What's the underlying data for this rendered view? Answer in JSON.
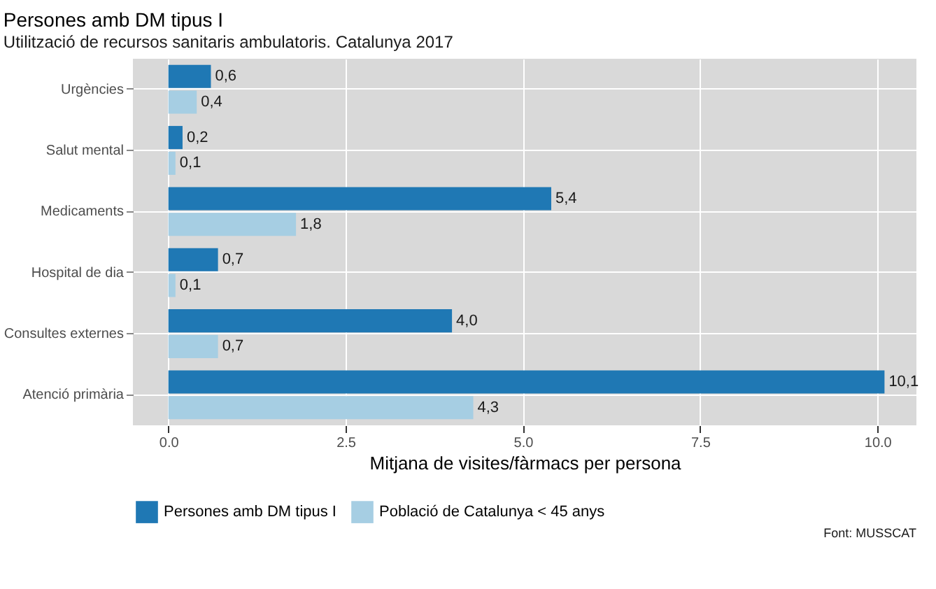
{
  "chart_data": {
    "type": "bar",
    "orientation": "horizontal",
    "title": "Persones amb DM tipus I",
    "subtitle": "Utilització de recursos sanitaris ambulatoris. Catalunya 2017",
    "xlabel": "Mitjana de visites/fàrmacs per persona",
    "categories": [
      "Urgències",
      "Salut mental",
      "Medicaments",
      "Hospital de dia",
      "Consultes externes",
      "Atenció primària"
    ],
    "series": [
      {
        "name": "Persones amb DM tipus I",
        "color": "#1f78b4",
        "values": [
          0.6,
          0.2,
          5.4,
          0.7,
          4.0,
          10.1
        ],
        "value_labels": [
          "0,6",
          "0,2",
          "5,4",
          "0,7",
          "4,0",
          "10,1"
        ]
      },
      {
        "name": "Població de Catalunya < 45 anys",
        "color": "#a6cee3",
        "values": [
          0.4,
          0.1,
          1.8,
          0.1,
          0.7,
          4.3
        ],
        "value_labels": [
          "0,4",
          "0,1",
          "1,8",
          "0,1",
          "0,7",
          "4,3"
        ]
      }
    ],
    "xlim": [
      -0.5,
      10.55
    ],
    "xticks": [
      {
        "value": 0,
        "label": "0.0"
      },
      {
        "value": 2.5,
        "label": "2.5"
      },
      {
        "value": 5,
        "label": "5.0"
      },
      {
        "value": 7.5,
        "label": "7.5"
      },
      {
        "value": 10,
        "label": "10.0"
      }
    ],
    "grid": true,
    "legend": "bottom",
    "annotations": [
      "Font: MUSSCAT"
    ]
  }
}
